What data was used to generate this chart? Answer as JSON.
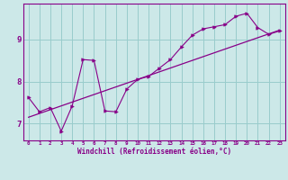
{
  "xlabel": "Windchill (Refroidissement éolien,°C)",
  "bg_color": "#cce8e8",
  "line_color": "#880088",
  "grid_color": "#99cccc",
  "xlim": [
    -0.5,
    23.5
  ],
  "ylim": [
    6.6,
    9.85
  ],
  "yticks": [
    7,
    8,
    9
  ],
  "xticks": [
    0,
    1,
    2,
    3,
    4,
    5,
    6,
    7,
    8,
    9,
    10,
    11,
    12,
    13,
    14,
    15,
    16,
    17,
    18,
    19,
    20,
    21,
    22,
    23
  ],
  "series1_x": [
    0,
    1,
    2,
    3,
    4,
    5,
    6,
    7,
    8,
    9,
    10,
    11,
    12,
    13,
    14,
    15,
    16,
    17,
    18,
    19,
    20,
    21,
    22,
    23
  ],
  "series1_y": [
    7.62,
    7.28,
    7.38,
    6.82,
    7.42,
    8.52,
    8.5,
    7.3,
    7.28,
    7.82,
    8.05,
    8.12,
    8.32,
    8.52,
    8.82,
    9.1,
    9.25,
    9.3,
    9.35,
    9.55,
    9.62,
    9.28,
    9.12,
    9.2
  ],
  "trend_x": [
    0,
    23
  ],
  "trend_y": [
    7.15,
    9.22
  ]
}
